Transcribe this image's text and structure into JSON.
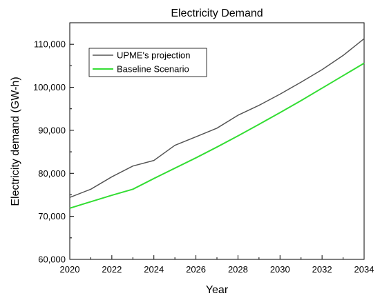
{
  "chart_data": {
    "type": "line",
    "title": "Electricity Demand",
    "xlabel": "Year",
    "ylabel": "Electricity demand (GW-h)",
    "xlim": [
      2020,
      2034
    ],
    "ylim": [
      60000,
      115000
    ],
    "x_ticks": [
      2020,
      2022,
      2024,
      2026,
      2028,
      2030,
      2032,
      2034
    ],
    "x_tick_labels": [
      "2020",
      "2022",
      "2024",
      "2026",
      "2028",
      "2030",
      "2032",
      "2034"
    ],
    "y_ticks": [
      60000,
      70000,
      80000,
      90000,
      100000,
      110000
    ],
    "y_tick_labels": [
      "60,000",
      "70,000",
      "80,000",
      "90,000",
      "100,000",
      "110,000"
    ],
    "grid": false,
    "legend_position": "top-left",
    "x": [
      2020,
      2021,
      2022,
      2023,
      2024,
      2025,
      2026,
      2027,
      2028,
      2029,
      2030,
      2031,
      2032,
      2033,
      2034
    ],
    "series": [
      {
        "name": "UPME's projection",
        "color": "#555555",
        "values": [
          74400,
          76300,
          79200,
          81700,
          83000,
          86500,
          88500,
          90500,
          93500,
          95800,
          98400,
          101200,
          104100,
          107400,
          111300
        ]
      },
      {
        "name": "Baseline Scenario",
        "color": "#33dd33",
        "values": [
          71900,
          73400,
          74900,
          76300,
          78800,
          81200,
          83600,
          86100,
          88700,
          91400,
          94100,
          96900,
          99800,
          102700,
          105600
        ]
      }
    ]
  }
}
